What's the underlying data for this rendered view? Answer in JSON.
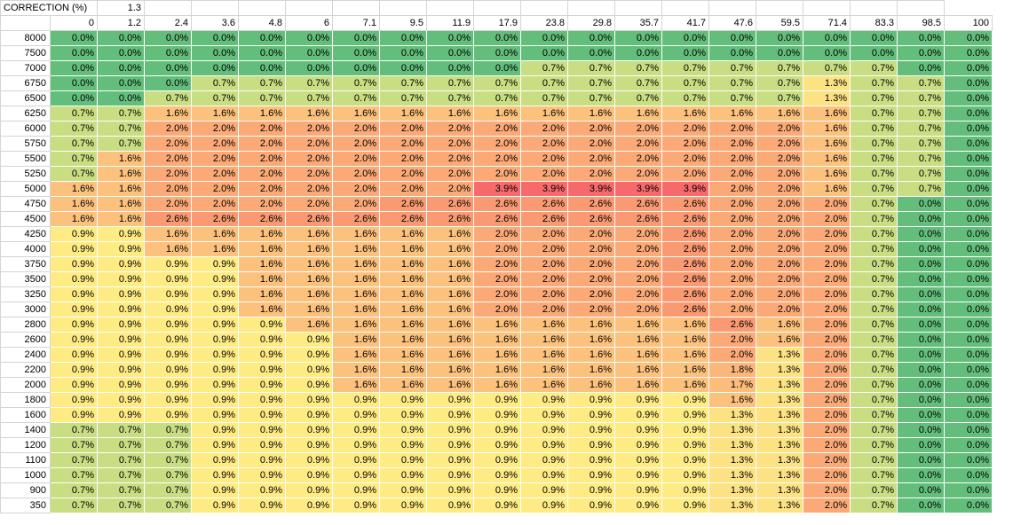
{
  "correction": {
    "label": "CORRECTION (%)",
    "value": "1.3"
  },
  "columns": [
    "0",
    "1.2",
    "2.4",
    "3.6",
    "4.8",
    "6",
    "7.1",
    "9.5",
    "11.9",
    "17.9",
    "23.8",
    "29.8",
    "35.7",
    "41.7",
    "47.6",
    "59.5",
    "71.4",
    "83.3",
    "98.5",
    "100"
  ],
  "rows": [
    {
      "label": "8000",
      "values": [
        "0.0%",
        "0.0%",
        "0.0%",
        "0.0%",
        "0.0%",
        "0.0%",
        "0.0%",
        "0.0%",
        "0.0%",
        "0.0%",
        "0.0%",
        "0.0%",
        "0.0%",
        "0.0%",
        "0.0%",
        "0.0%",
        "0.0%",
        "0.0%",
        "0.0%",
        "0.0%"
      ]
    },
    {
      "label": "7500",
      "values": [
        "0.0%",
        "0.0%",
        "0.0%",
        "0.0%",
        "0.0%",
        "0.0%",
        "0.0%",
        "0.0%",
        "0.0%",
        "0.0%",
        "0.0%",
        "0.0%",
        "0.0%",
        "0.0%",
        "0.0%",
        "0.0%",
        "0.0%",
        "0.0%",
        "0.0%",
        "0.0%"
      ]
    },
    {
      "label": "7000",
      "values": [
        "0.0%",
        "0.0%",
        "0.0%",
        "0.0%",
        "0.0%",
        "0.0%",
        "0.0%",
        "0.0%",
        "0.0%",
        "0.0%",
        "0.7%",
        "0.7%",
        "0.7%",
        "0.7%",
        "0.7%",
        "0.7%",
        "0.7%",
        "0.7%",
        "0.0%",
        "0.0%"
      ]
    },
    {
      "label": "6750",
      "values": [
        "0.0%",
        "0.0%",
        "0.0%",
        "0.7%",
        "0.7%",
        "0.7%",
        "0.7%",
        "0.7%",
        "0.7%",
        "0.7%",
        "0.7%",
        "0.7%",
        "0.7%",
        "0.7%",
        "0.7%",
        "0.7%",
        "1.3%",
        "0.7%",
        "0.7%",
        "0.0%"
      ]
    },
    {
      "label": "6500",
      "values": [
        "0.0%",
        "0.0%",
        "0.7%",
        "0.7%",
        "0.7%",
        "0.7%",
        "0.7%",
        "0.7%",
        "0.7%",
        "0.7%",
        "0.7%",
        "0.7%",
        "0.7%",
        "0.7%",
        "0.7%",
        "0.7%",
        "1.3%",
        "0.7%",
        "0.7%",
        "0.0%"
      ]
    },
    {
      "label": "6250",
      "values": [
        "0.7%",
        "0.7%",
        "1.6%",
        "1.6%",
        "1.6%",
        "1.6%",
        "1.6%",
        "1.6%",
        "1.6%",
        "1.6%",
        "1.6%",
        "1.6%",
        "1.6%",
        "1.6%",
        "1.6%",
        "1.6%",
        "1.6%",
        "0.7%",
        "0.7%",
        "0.0%"
      ]
    },
    {
      "label": "6000",
      "values": [
        "0.7%",
        "0.7%",
        "2.0%",
        "2.0%",
        "2.0%",
        "2.0%",
        "2.0%",
        "2.0%",
        "2.0%",
        "2.0%",
        "2.0%",
        "2.0%",
        "2.0%",
        "2.0%",
        "2.0%",
        "2.0%",
        "1.6%",
        "0.7%",
        "0.7%",
        "0.0%"
      ]
    },
    {
      "label": "5750",
      "values": [
        "0.7%",
        "0.7%",
        "2.0%",
        "2.0%",
        "2.0%",
        "2.0%",
        "2.0%",
        "2.0%",
        "2.0%",
        "2.0%",
        "2.0%",
        "2.0%",
        "2.0%",
        "2.0%",
        "2.0%",
        "2.0%",
        "1.6%",
        "0.7%",
        "0.7%",
        "0.0%"
      ]
    },
    {
      "label": "5500",
      "values": [
        "0.7%",
        "1.6%",
        "2.0%",
        "2.0%",
        "2.0%",
        "2.0%",
        "2.0%",
        "2.0%",
        "2.0%",
        "2.0%",
        "2.0%",
        "2.0%",
        "2.0%",
        "2.0%",
        "2.0%",
        "2.0%",
        "1.6%",
        "0.7%",
        "0.7%",
        "0.0%"
      ]
    },
    {
      "label": "5250",
      "values": [
        "0.7%",
        "1.6%",
        "2.0%",
        "2.0%",
        "2.0%",
        "2.0%",
        "2.0%",
        "2.0%",
        "2.0%",
        "2.0%",
        "2.0%",
        "2.0%",
        "2.0%",
        "2.0%",
        "2.0%",
        "2.0%",
        "1.6%",
        "0.7%",
        "0.7%",
        "0.0%"
      ]
    },
    {
      "label": "5000",
      "values": [
        "1.6%",
        "1.6%",
        "2.0%",
        "2.0%",
        "2.0%",
        "2.0%",
        "2.0%",
        "2.0%",
        "2.0%",
        "3.9%",
        "3.9%",
        "3.9%",
        "3.9%",
        "3.9%",
        "2.0%",
        "2.0%",
        "1.6%",
        "0.7%",
        "0.7%",
        "0.0%"
      ]
    },
    {
      "label": "4750",
      "values": [
        "1.6%",
        "1.6%",
        "2.0%",
        "2.0%",
        "2.0%",
        "2.0%",
        "2.0%",
        "2.6%",
        "2.6%",
        "2.6%",
        "2.6%",
        "2.6%",
        "2.6%",
        "2.6%",
        "2.0%",
        "2.0%",
        "2.0%",
        "0.7%",
        "0.0%",
        "0.0%"
      ]
    },
    {
      "label": "4500",
      "values": [
        "1.6%",
        "1.6%",
        "2.6%",
        "2.6%",
        "2.6%",
        "2.6%",
        "2.6%",
        "2.6%",
        "2.6%",
        "2.6%",
        "2.6%",
        "2.6%",
        "2.6%",
        "2.6%",
        "2.0%",
        "2.0%",
        "2.0%",
        "0.7%",
        "0.0%",
        "0.0%"
      ]
    },
    {
      "label": "4250",
      "values": [
        "0.9%",
        "0.9%",
        "1.6%",
        "1.6%",
        "1.6%",
        "1.6%",
        "1.6%",
        "1.6%",
        "1.6%",
        "2.0%",
        "2.0%",
        "2.0%",
        "2.0%",
        "2.6%",
        "2.0%",
        "2.0%",
        "2.0%",
        "0.7%",
        "0.0%",
        "0.0%"
      ]
    },
    {
      "label": "4000",
      "values": [
        "0.9%",
        "0.9%",
        "1.6%",
        "1.6%",
        "1.6%",
        "1.6%",
        "1.6%",
        "1.6%",
        "1.6%",
        "2.0%",
        "2.0%",
        "2.0%",
        "2.0%",
        "2.6%",
        "2.0%",
        "2.0%",
        "2.0%",
        "0.7%",
        "0.0%",
        "0.0%"
      ]
    },
    {
      "label": "3750",
      "values": [
        "0.9%",
        "0.9%",
        "0.9%",
        "0.9%",
        "1.6%",
        "1.6%",
        "1.6%",
        "1.6%",
        "1.6%",
        "2.0%",
        "2.0%",
        "2.0%",
        "2.0%",
        "2.6%",
        "2.0%",
        "2.0%",
        "2.0%",
        "0.7%",
        "0.0%",
        "0.0%"
      ]
    },
    {
      "label": "3500",
      "values": [
        "0.9%",
        "0.9%",
        "0.9%",
        "0.9%",
        "1.6%",
        "1.6%",
        "1.6%",
        "1.6%",
        "1.6%",
        "2.0%",
        "2.0%",
        "2.0%",
        "2.0%",
        "2.6%",
        "2.0%",
        "2.0%",
        "2.0%",
        "0.7%",
        "0.0%",
        "0.0%"
      ]
    },
    {
      "label": "3250",
      "values": [
        "0.9%",
        "0.9%",
        "0.9%",
        "0.9%",
        "1.6%",
        "1.6%",
        "1.6%",
        "1.6%",
        "1.6%",
        "2.0%",
        "2.0%",
        "2.0%",
        "2.0%",
        "2.6%",
        "2.0%",
        "2.0%",
        "2.0%",
        "0.7%",
        "0.0%",
        "0.0%"
      ]
    },
    {
      "label": "3000",
      "values": [
        "0.9%",
        "0.9%",
        "0.9%",
        "0.9%",
        "1.6%",
        "1.6%",
        "1.6%",
        "1.6%",
        "1.6%",
        "2.0%",
        "2.0%",
        "2.0%",
        "2.0%",
        "2.6%",
        "2.0%",
        "2.0%",
        "2.0%",
        "0.7%",
        "0.0%",
        "0.0%"
      ]
    },
    {
      "label": "2800",
      "values": [
        "0.9%",
        "0.9%",
        "0.9%",
        "0.9%",
        "0.9%",
        "1.6%",
        "1.6%",
        "1.6%",
        "1.6%",
        "1.6%",
        "1.6%",
        "1.6%",
        "1.6%",
        "1.6%",
        "2.6%",
        "1.6%",
        "2.0%",
        "0.7%",
        "0.0%",
        "0.0%"
      ]
    },
    {
      "label": "2600",
      "values": [
        "0.9%",
        "0.9%",
        "0.9%",
        "0.9%",
        "0.9%",
        "0.9%",
        "1.6%",
        "1.6%",
        "1.6%",
        "1.6%",
        "1.6%",
        "1.6%",
        "1.6%",
        "1.6%",
        "2.0%",
        "1.6%",
        "2.0%",
        "0.7%",
        "0.0%",
        "0.0%"
      ]
    },
    {
      "label": "2400",
      "values": [
        "0.9%",
        "0.9%",
        "0.9%",
        "0.9%",
        "0.9%",
        "0.9%",
        "1.6%",
        "1.6%",
        "1.6%",
        "1.6%",
        "1.6%",
        "1.6%",
        "1.6%",
        "1.6%",
        "2.0%",
        "1.3%",
        "2.0%",
        "0.7%",
        "0.0%",
        "0.0%"
      ]
    },
    {
      "label": "2200",
      "values": [
        "0.9%",
        "0.9%",
        "0.9%",
        "0.9%",
        "0.9%",
        "0.9%",
        "1.6%",
        "1.6%",
        "1.6%",
        "1.6%",
        "1.6%",
        "1.6%",
        "1.6%",
        "1.6%",
        "1.8%",
        "1.3%",
        "2.0%",
        "0.7%",
        "0.0%",
        "0.0%"
      ]
    },
    {
      "label": "2000",
      "values": [
        "0.9%",
        "0.9%",
        "0.9%",
        "0.9%",
        "0.9%",
        "0.9%",
        "1.6%",
        "1.6%",
        "1.6%",
        "1.6%",
        "1.6%",
        "1.6%",
        "1.6%",
        "1.6%",
        "1.7%",
        "1.3%",
        "2.0%",
        "0.7%",
        "0.0%",
        "0.0%"
      ]
    },
    {
      "label": "1800",
      "values": [
        "0.9%",
        "0.9%",
        "0.9%",
        "0.9%",
        "0.9%",
        "0.9%",
        "0.9%",
        "0.9%",
        "0.9%",
        "0.9%",
        "0.9%",
        "0.9%",
        "0.9%",
        "0.9%",
        "1.6%",
        "1.3%",
        "2.0%",
        "0.7%",
        "0.0%",
        "0.0%"
      ]
    },
    {
      "label": "1600",
      "values": [
        "0.9%",
        "0.9%",
        "0.9%",
        "0.9%",
        "0.9%",
        "0.9%",
        "0.9%",
        "0.9%",
        "0.9%",
        "0.9%",
        "0.9%",
        "0.9%",
        "0.9%",
        "0.9%",
        "1.3%",
        "1.3%",
        "2.0%",
        "0.7%",
        "0.0%",
        "0.0%"
      ]
    },
    {
      "label": "1400",
      "values": [
        "0.7%",
        "0.7%",
        "0.7%",
        "0.9%",
        "0.9%",
        "0.9%",
        "0.9%",
        "0.9%",
        "0.9%",
        "0.9%",
        "0.9%",
        "0.9%",
        "0.9%",
        "0.9%",
        "1.3%",
        "1.3%",
        "2.0%",
        "0.7%",
        "0.0%",
        "0.0%"
      ]
    },
    {
      "label": "1200",
      "values": [
        "0.7%",
        "0.7%",
        "0.7%",
        "0.9%",
        "0.9%",
        "0.9%",
        "0.9%",
        "0.9%",
        "0.9%",
        "0.9%",
        "0.9%",
        "0.9%",
        "0.9%",
        "0.9%",
        "1.3%",
        "1.3%",
        "2.0%",
        "0.7%",
        "0.0%",
        "0.0%"
      ]
    },
    {
      "label": "1100",
      "values": [
        "0.7%",
        "0.7%",
        "0.7%",
        "0.9%",
        "0.9%",
        "0.9%",
        "0.9%",
        "0.9%",
        "0.9%",
        "0.9%",
        "0.9%",
        "0.9%",
        "0.9%",
        "0.9%",
        "1.3%",
        "1.3%",
        "2.0%",
        "0.7%",
        "0.0%",
        "0.0%"
      ]
    },
    {
      "label": "1000",
      "values": [
        "0.7%",
        "0.7%",
        "0.7%",
        "0.9%",
        "0.9%",
        "0.9%",
        "0.9%",
        "0.9%",
        "0.9%",
        "0.9%",
        "0.9%",
        "0.9%",
        "0.9%",
        "0.9%",
        "1.3%",
        "1.3%",
        "2.0%",
        "0.7%",
        "0.0%",
        "0.0%"
      ]
    },
    {
      "label": "900",
      "values": [
        "0.7%",
        "0.7%",
        "0.7%",
        "0.9%",
        "0.9%",
        "0.9%",
        "0.9%",
        "0.9%",
        "0.9%",
        "0.9%",
        "0.9%",
        "0.9%",
        "0.9%",
        "0.9%",
        "1.3%",
        "1.3%",
        "2.0%",
        "0.7%",
        "0.0%",
        "0.0%"
      ]
    },
    {
      "label": "350",
      "values": [
        "0.7%",
        "0.7%",
        "0.7%",
        "0.9%",
        "0.9%",
        "0.9%",
        "0.9%",
        "0.9%",
        "0.9%",
        "0.9%",
        "0.9%",
        "0.9%",
        "0.9%",
        "0.9%",
        "1.3%",
        "1.3%",
        "2.0%",
        "0.7%",
        "0.0%",
        "0.0%"
      ]
    }
  ],
  "color_scale": {
    "0.0%": "#63be7b",
    "0.7%": "#c9dd82",
    "0.9%": "#ffeb84",
    "1.3%": "#fde283",
    "1.6%": "#fcc17c",
    "1.7%": "#fcbc7b",
    "1.8%": "#fbb77a",
    "2.0%": "#fbaa77",
    "2.6%": "#f99a72",
    "3.9%": "#f8696b"
  }
}
